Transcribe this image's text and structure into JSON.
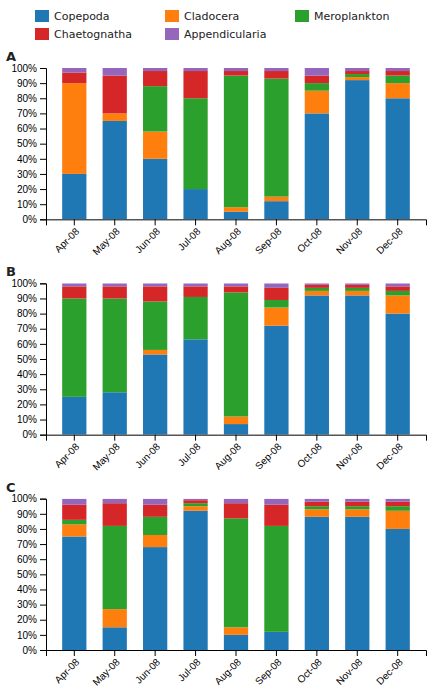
{
  "chart_data": [
    {
      "type": "bar",
      "title": "A",
      "stacked": true,
      "grid": false,
      "legend": "top",
      "categories": [
        "Apr-08",
        "May-08",
        "Jun-08",
        "Jul-08",
        "Aug-08",
        "Sep-08",
        "Oct-08",
        "Nov-08",
        "Dec-08"
      ],
      "series": [
        {
          "name": "Copepoda",
          "values": [
            30,
            65,
            40,
            20,
            5,
            12,
            70,
            92,
            80
          ]
        },
        {
          "name": "Cladocera",
          "values": [
            60,
            5,
            18,
            0,
            3,
            3,
            15,
            2,
            10
          ]
        },
        {
          "name": "Meroplankton",
          "values": [
            0,
            0,
            30,
            60,
            87,
            78,
            5,
            2,
            5
          ]
        },
        {
          "name": "Chaetognatha",
          "values": [
            7,
            25,
            10,
            18,
            3,
            5,
            5,
            2,
            3
          ]
        },
        {
          "name": "Appendicularia",
          "values": [
            3,
            5,
            2,
            2,
            2,
            2,
            5,
            2,
            2
          ]
        }
      ],
      "ylim": [
        0,
        100
      ],
      "yticks": [
        {
          "value": 0,
          "label": "0%"
        },
        {
          "value": 10,
          "label": "10%"
        },
        {
          "value": 20,
          "label": "20%"
        },
        {
          "value": 30,
          "label": "30%"
        },
        {
          "value": 40,
          "label": "40%"
        },
        {
          "value": 50,
          "label": "50%"
        },
        {
          "value": 60,
          "label": "60%"
        },
        {
          "value": 70,
          "label": "70%"
        },
        {
          "value": 80,
          "label": "80%"
        },
        {
          "value": 90,
          "label": "90%"
        },
        {
          "value": 100,
          "label": "100%"
        }
      ]
    },
    {
      "type": "bar",
      "title": "B",
      "stacked": true,
      "grid": false,
      "categories": [
        "Apr-08",
        "May-08",
        "Jun-08",
        "Jul-08",
        "Aug-08",
        "Sep-08",
        "Oct-08",
        "Nov-08",
        "Dec-08"
      ],
      "series": [
        {
          "name": "Copepoda",
          "values": [
            25,
            28,
            53,
            63,
            7,
            72,
            92,
            92,
            80
          ]
        },
        {
          "name": "Cladocera",
          "values": [
            0,
            0,
            3,
            0,
            5,
            12,
            3,
            3,
            12
          ]
        },
        {
          "name": "Meroplankton",
          "values": [
            65,
            62,
            32,
            28,
            82,
            5,
            2,
            2,
            3
          ]
        },
        {
          "name": "Chaetognatha",
          "values": [
            8,
            8,
            10,
            7,
            4,
            8,
            2,
            2,
            3
          ]
        },
        {
          "name": "Appendicularia",
          "values": [
            2,
            2,
            2,
            2,
            2,
            3,
            1,
            1,
            2
          ]
        }
      ],
      "ylim": [
        0,
        100
      ],
      "yticks": [
        {
          "value": 0,
          "label": "0%"
        },
        {
          "value": 10,
          "label": "10%"
        },
        {
          "value": 20,
          "label": "20%"
        },
        {
          "value": 30,
          "label": "30%"
        },
        {
          "value": 40,
          "label": "40%"
        },
        {
          "value": 50,
          "label": "50%"
        },
        {
          "value": 60,
          "label": "60%"
        },
        {
          "value": 70,
          "label": "70%"
        },
        {
          "value": 80,
          "label": "80%"
        },
        {
          "value": 90,
          "label": "90%"
        },
        {
          "value": 100,
          "label": "100%"
        }
      ]
    },
    {
      "type": "bar",
      "title": "C",
      "stacked": true,
      "grid": false,
      "categories": [
        "Apr-08",
        "May-08",
        "Jun-08",
        "Jul-08",
        "Aug-08",
        "Sep-08",
        "Oct-08",
        "Nov-08",
        "Dec-08"
      ],
      "series": [
        {
          "name": "Copepoda",
          "values": [
            75,
            15,
            68,
            92,
            10,
            12,
            88,
            88,
            80
          ]
        },
        {
          "name": "Cladocera",
          "values": [
            8,
            12,
            8,
            3,
            5,
            0,
            5,
            5,
            12
          ]
        },
        {
          "name": "Meroplankton",
          "values": [
            3,
            55,
            12,
            2,
            72,
            70,
            2,
            2,
            3
          ]
        },
        {
          "name": "Chaetognatha",
          "values": [
            10,
            15,
            8,
            2,
            10,
            14,
            3,
            3,
            3
          ]
        },
        {
          "name": "Appendicularia",
          "values": [
            4,
            3,
            4,
            1,
            3,
            4,
            2,
            2,
            2
          ]
        }
      ],
      "ylim": [
        0,
        100
      ],
      "yticks": [
        {
          "value": 0,
          "label": "0%"
        },
        {
          "value": 10,
          "label": "10%"
        },
        {
          "value": 20,
          "label": "20%"
        },
        {
          "value": 30,
          "label": "30%"
        },
        {
          "value": 40,
          "label": "40%"
        },
        {
          "value": 50,
          "label": "50%"
        },
        {
          "value": 60,
          "label": "60%"
        },
        {
          "value": 70,
          "label": "70%"
        },
        {
          "value": 80,
          "label": "80%"
        },
        {
          "value": 90,
          "label": "90%"
        },
        {
          "value": 100,
          "label": "100%"
        }
      ]
    }
  ]
}
